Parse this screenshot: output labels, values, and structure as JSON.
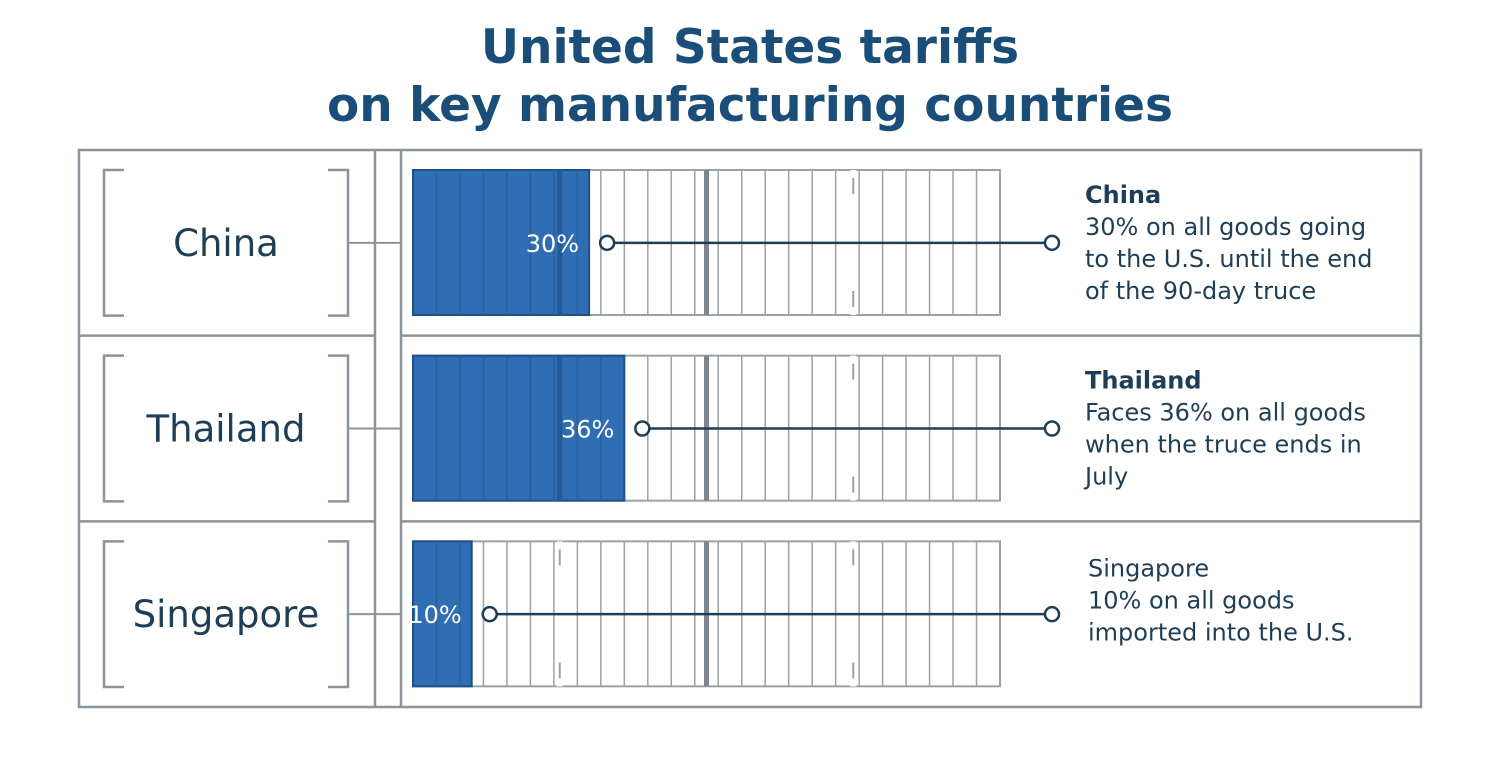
{
  "chart_data": {
    "type": "bar",
    "title": "United States tariffs on key manufacturing countries",
    "title_lines": [
      "United States tariffs",
      "on key manufacturing countries"
    ],
    "categories": [
      "China",
      "Thailand",
      "Singapore"
    ],
    "values": [
      30,
      36,
      10
    ],
    "value_labels": [
      "30%",
      "36%",
      "10%"
    ],
    "unit": "%",
    "ylim": [
      0,
      100
    ],
    "grid": true,
    "orientation": "horizontal",
    "bar_color": "#2f6db5",
    "annotations": [
      {
        "heading": "China",
        "lines": [
          "30% on all goods going",
          "to the U.S. until the end",
          "of the 90-day truce"
        ]
      },
      {
        "heading": "Thailand",
        "lines": [
          "Faces 36% on all goods",
          "when the truce ends in",
          "July"
        ]
      },
      {
        "heading": "",
        "lines": [
          "Singapore",
          "10% on all goods",
          "imported into the U.S."
        ]
      }
    ]
  }
}
